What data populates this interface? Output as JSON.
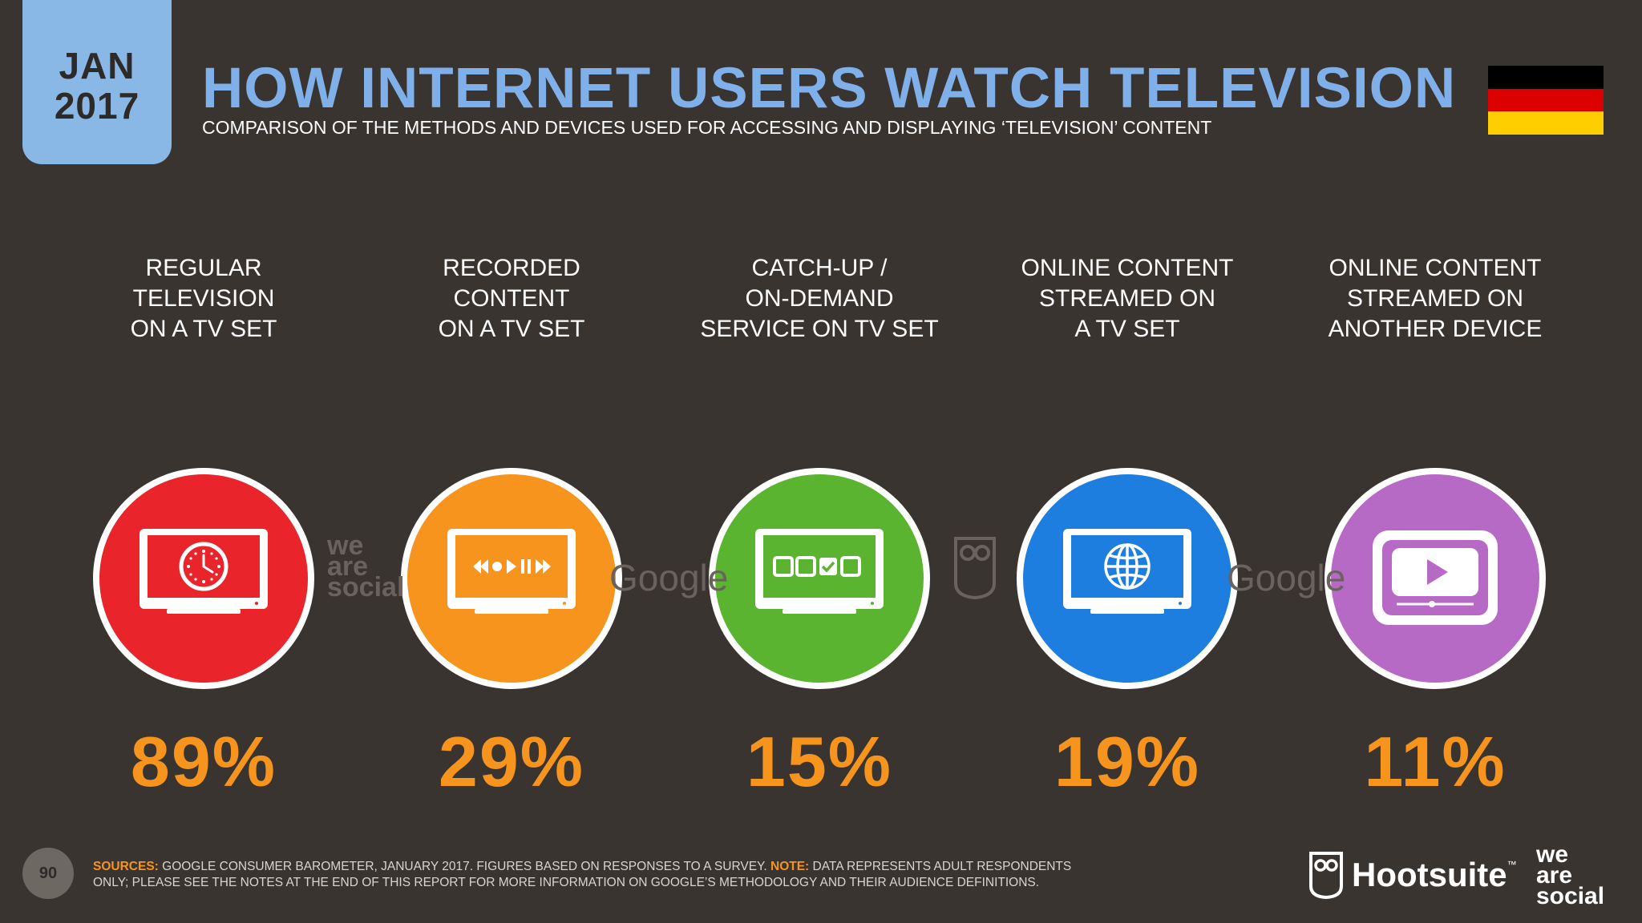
{
  "header": {
    "date_month": "JAN",
    "date_year": "2017",
    "title": "HOW INTERNET USERS WATCH TELEVISION",
    "subtitle": "COMPARISON OF THE METHODS AND DEVICES USED FOR ACCESSING AND DISPLAYING ‘TELEVISION’ CONTENT",
    "flag_colors": [
      "#000000",
      "#dd0000",
      "#ffce00"
    ]
  },
  "methods": [
    {
      "label_lines": [
        "REGULAR",
        "TELEVISION",
        "ON A TV SET"
      ],
      "value": "89%",
      "color": "#e9242a",
      "icon": "clock-tv-icon"
    },
    {
      "label_lines": [
        "RECORDED",
        "CONTENT",
        "ON A TV SET"
      ],
      "value": "29%",
      "color": "#f7941d",
      "icon": "media-controls-tv-icon"
    },
    {
      "label_lines": [
        "CATCH-UP /",
        "ON-DEMAND",
        "SERVICE ON TV SET"
      ],
      "value": "15%",
      "color": "#5bb430",
      "icon": "selection-boxes-tv-icon"
    },
    {
      "label_lines": [
        "ONLINE CONTENT",
        "STREAMED ON",
        "A TV SET"
      ],
      "value": "19%",
      "color": "#1e7ee0",
      "icon": "globe-tv-icon"
    },
    {
      "label_lines": [
        "ONLINE CONTENT",
        "STREAMED ON",
        "ANOTHER DEVICE"
      ],
      "value": "11%",
      "color": "#b769c6",
      "icon": "video-player-icon"
    }
  ],
  "watermarks": {
    "was_lines": [
      "we",
      "are",
      "social"
    ],
    "google": "Google"
  },
  "footer": {
    "page_number": "90",
    "sources_label": "SOURCES:",
    "sources_text": " GOOGLE CONSUMER BAROMETER, JANUARY 2017. FIGURES BASED ON RESPONSES TO A SURVEY. ",
    "note_label": "NOTE:",
    "note_text": " DATA REPRESENTS ADULT RESPONDENTS ONLY; PLEASE SEE THE NOTES AT THE END OF THIS REPORT FOR MORE INFORMATION ON GOOGLE’S METHODOLOGY AND THEIR AUDIENCE DEFINITIONS.",
    "hootsuite": "Hootsuite",
    "tm": "™",
    "was_lines": [
      "we",
      "are",
      "social"
    ]
  }
}
